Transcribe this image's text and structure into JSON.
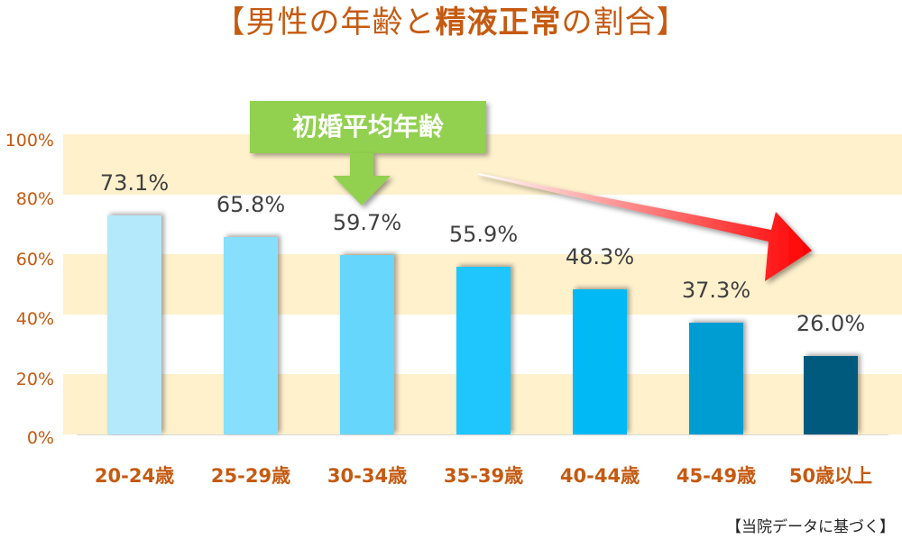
{
  "title": {
    "prefix": "【男性の年齢と",
    "bold": "精液正常",
    "suffix": "の割合】"
  },
  "callout": {
    "label": "初婚平均年齢"
  },
  "note": "【当院データに基づく】",
  "colors": {
    "accent": "#c55a11",
    "band": "#fff1cc",
    "callout": "#92d050",
    "trend_arrow": "#ff0000"
  },
  "y_ticks": [
    "100%",
    "80%",
    "60%",
    "40%",
    "20%",
    "0%"
  ],
  "value_labels": [
    "73.1%",
    "65.8%",
    "59.7%",
    "55.9%",
    "48.3%",
    "37.3%",
    "26.0%"
  ],
  "x_labels": [
    "20-24歳",
    "25-29歳",
    "30-34歳",
    "35-39歳",
    "40-44歳",
    "45-49歳",
    "50歳以上"
  ],
  "chart_data": {
    "type": "bar",
    "title": "【男性の年齢と精液正常の割合】",
    "categories": [
      "20-24歳",
      "25-29歳",
      "30-34歳",
      "35-39歳",
      "40-44歳",
      "45-49歳",
      "50歳以上"
    ],
    "values": [
      73.1,
      65.8,
      59.7,
      55.9,
      48.3,
      37.3,
      26.0
    ],
    "bar_colors": [
      "#b4e9fb",
      "#86dffd",
      "#67d6fd",
      "#1ec6fd",
      "#00b9f5",
      "#009dd3",
      "#005a7d"
    ],
    "xlabel": "",
    "ylabel": "",
    "ylim": [
      0,
      100
    ],
    "y_ticks": [
      "0%",
      "20%",
      "40%",
      "60%",
      "80%",
      "100%"
    ],
    "grid": "alternating horizontal bands (0-20, 40-60, 80-100)",
    "annotations": [
      "初婚平均年齢 (arrow pointing to 30-34歳)",
      "red declining trend arrow",
      "【当院データに基づく】"
    ],
    "legend": "none"
  }
}
